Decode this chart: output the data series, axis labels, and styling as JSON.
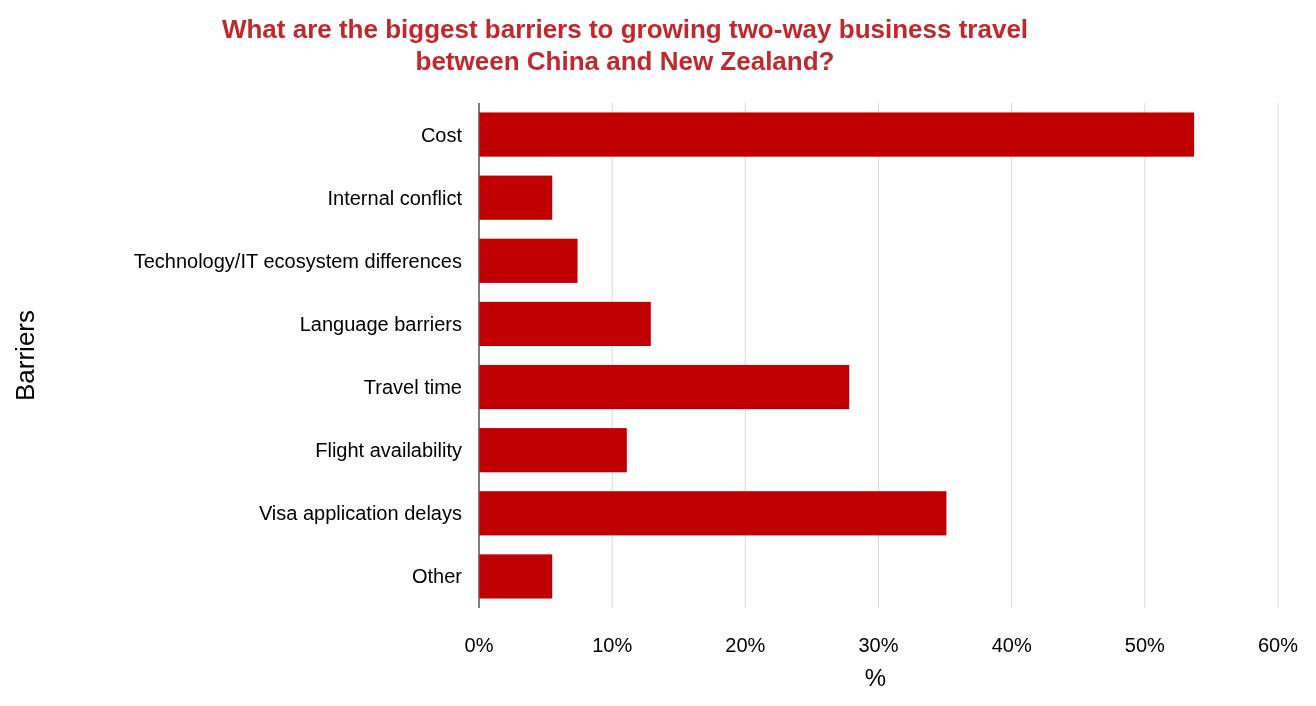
{
  "chart_data": {
    "type": "bar",
    "orientation": "horizontal",
    "title": "What are the biggest barriers to growing two-way business travel\nbetween China and New Zealand?",
    "xlabel": "%",
    "ylabel": "Barriers",
    "categories": [
      "Cost",
      "Internal conflict",
      "Technology/IT ecosystem differences",
      "Language barriers",
      "Travel time",
      "Flight availability",
      "Visa application delays",
      "Other"
    ],
    "values": [
      53.7,
      5.5,
      7.4,
      12.9,
      27.8,
      11.1,
      35.1,
      5.5
    ],
    "color": "#c00000",
    "xlim": [
      0,
      60
    ],
    "xticks": [
      {
        "value": 0,
        "label": "0%"
      },
      {
        "value": 10,
        "label": "10%"
      },
      {
        "value": 20,
        "label": "20%"
      },
      {
        "value": 30,
        "label": "30%"
      },
      {
        "value": 40,
        "label": "40%"
      },
      {
        "value": 50,
        "label": "50%"
      },
      {
        "value": 60,
        "label": "60%"
      }
    ],
    "grid": "x"
  }
}
